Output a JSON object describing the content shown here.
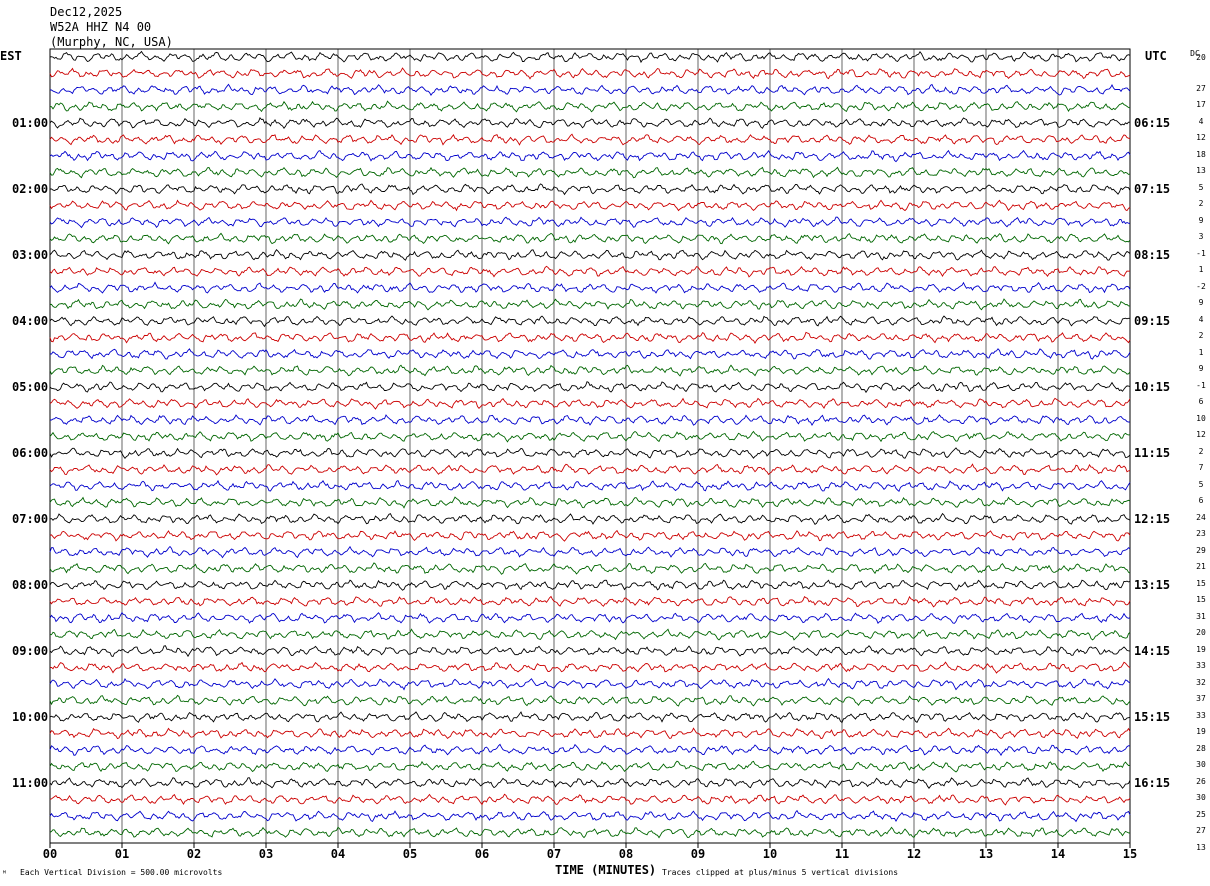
{
  "header": {
    "date": "Dec12,2025",
    "station": "W52A HHZ N4 00",
    "location": "(Murphy, NC, USA)"
  },
  "left_timezone": "EST",
  "right_timezone": "UTC",
  "dc_label": "DC",
  "footer": {
    "left_note": "Each Vertical Division =  500.00 microvolts",
    "x_axis_title": "TIME (MINUTES)",
    "right_note": "Traces clipped at plus/minus 5 vertical divisions",
    "corner_mark": "ᴹ"
  },
  "chart_data": {
    "type": "line",
    "title": "W52A HHZ N4 00",
    "xlabel": "TIME (MINUTES)",
    "x_ticks": [
      "00",
      "01",
      "02",
      "03",
      "04",
      "05",
      "06",
      "07",
      "08",
      "09",
      "10",
      "11",
      "12",
      "13",
      "14",
      "15"
    ],
    "xlim": [
      0,
      15
    ],
    "trace_count": 48,
    "trace_colors": [
      "#000000",
      "#cc0000",
      "#0000cc",
      "#006600"
    ],
    "grid": true,
    "left_hour_labels": [
      "01:00",
      "02:00",
      "03:00",
      "04:00",
      "05:00",
      "06:00",
      "07:00",
      "08:00",
      "09:00",
      "10:00",
      "11:00"
    ],
    "right_hour_labels": [
      "06:15",
      "07:15",
      "08:15",
      "09:15",
      "10:15",
      "11:15",
      "12:15",
      "13:15",
      "14:15",
      "15:15",
      "16:15"
    ],
    "dc_offsets": [
      "20",
      "27",
      "17",
      "4",
      "12",
      "18",
      "13",
      "5",
      "2",
      "9",
      "3",
      "-1",
      "1",
      "-2",
      "9",
      "4",
      "2",
      "1",
      "9",
      "-1",
      "6",
      "10",
      "12",
      "2",
      "7",
      "5",
      "6",
      "24",
      "23",
      "29",
      "21",
      "15",
      "15",
      "31",
      "20",
      "19",
      "33",
      "32",
      "37",
      "33",
      "19",
      "28",
      "30",
      "26",
      "30",
      "25",
      "27",
      "13"
    ]
  }
}
